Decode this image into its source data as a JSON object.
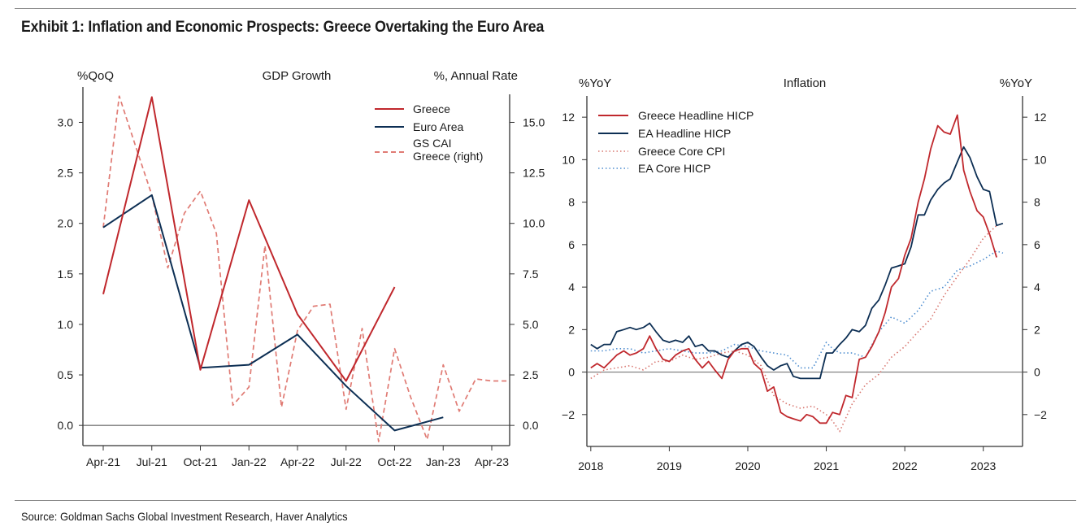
{
  "title": "Exhibit 1: Inflation and Economic Prospects: Greece Overtaking the Euro Area",
  "source": "Source: Goldman Sachs Global Investment Research, Haver Analytics",
  "colors": {
    "greece": "#c0282d",
    "euro": "#0d2f54",
    "greece_core": "#d8766f",
    "ea_core": "#4f8ed0",
    "gs_cai": "#e07b74",
    "axis": "#333333"
  },
  "chart_data": [
    {
      "type": "line",
      "title": "GDP Growth",
      "ylabel_left": "%QoQ",
      "ylabel_right": "%, Annual Rate",
      "categories": [
        "Apr-21",
        "Jul-21",
        "Oct-21",
        "Jan-22",
        "Apr-22",
        "Jul-22",
        "Oct-22",
        "Jan-23",
        "Apr-23"
      ],
      "ylim_left": [
        -0.2,
        3.35
      ],
      "ylim_right": [
        -1.0,
        16.75
      ],
      "yticks_left": [
        "0.0",
        "0.5",
        "1.0",
        "1.5",
        "2.0",
        "2.5",
        "3.0"
      ],
      "yticks_right": [
        "0.0",
        "2.5",
        "5.0",
        "7.5",
        "10.0",
        "12.5",
        "15.0"
      ],
      "legend": [
        "Greece",
        "Euro Area",
        "GS CAI Greece (right)"
      ],
      "series": [
        {
          "name": "Greece",
          "axis": "left",
          "style": "solid",
          "color": "#c0282d",
          "x": [
            0,
            1,
            2,
            3,
            4,
            5,
            6
          ],
          "values": [
            1.3,
            3.25,
            0.55,
            2.23,
            1.1,
            0.44,
            1.37
          ]
        },
        {
          "name": "Euro Area",
          "axis": "left",
          "style": "solid",
          "color": "#0d2f54",
          "x": [
            0,
            1,
            2,
            3,
            4,
            5,
            6,
            7
          ],
          "values": [
            1.96,
            2.28,
            0.57,
            0.6,
            0.9,
            0.39,
            -0.05,
            0.08
          ]
        },
        {
          "name": "GS CAI Greece (right)",
          "axis": "right",
          "style": "dashed",
          "color": "#e07b74",
          "x": [
            0,
            0.33,
            0.67,
            1,
            1.33,
            1.67,
            2,
            2.33,
            2.67,
            3,
            3.33,
            3.67,
            4,
            4.33,
            4.67,
            5,
            5.33,
            5.67,
            6,
            6.33,
            6.67,
            7,
            7.33,
            7.67,
            8,
            8.33
          ],
          "values": [
            9.8,
            16.3,
            13.8,
            11.4,
            7.8,
            10.5,
            11.6,
            9.5,
            1.0,
            1.9,
            8.9,
            0.9,
            4.7,
            5.9,
            6.0,
            0.8,
            4.8,
            -0.8,
            3.8,
            1.4,
            -0.7,
            3.0,
            0.7,
            2.3,
            2.2,
            2.2
          ]
        }
      ]
    },
    {
      "type": "line",
      "title": "Inflation",
      "ylabel_left": "%YoY",
      "ylabel_right": "%YoY",
      "xticks": [
        "2018",
        "2019",
        "2020",
        "2021",
        "2022",
        "2023"
      ],
      "xlim": [
        2017.95,
        2023.5
      ],
      "ylim": [
        -3.5,
        13.0
      ],
      "yticks_left": [
        "-2",
        "0",
        "2",
        "4",
        "6",
        "8",
        "10",
        "12"
      ],
      "yticks_right": [
        "-2",
        "0",
        "2",
        "4",
        "6",
        "8",
        "10",
        "12"
      ],
      "legend": [
        "Greece Headline HICP",
        "EA Headline HICP",
        "Greece Core CPI",
        "EA Core HICP"
      ],
      "series": [
        {
          "name": "Greece Headline HICP",
          "style": "solid",
          "color": "#c0282d",
          "x": [
            2018.0,
            2018.08,
            2018.17,
            2018.25,
            2018.33,
            2018.42,
            2018.5,
            2018.58,
            2018.67,
            2018.75,
            2018.83,
            2018.92,
            2019.0,
            2019.08,
            2019.17,
            2019.25,
            2019.33,
            2019.42,
            2019.5,
            2019.58,
            2019.67,
            2019.75,
            2019.83,
            2019.92,
            2020.0,
            2020.08,
            2020.17,
            2020.25,
            2020.33,
            2020.42,
            2020.5,
            2020.58,
            2020.67,
            2020.75,
            2020.83,
            2020.92,
            2021.0,
            2021.08,
            2021.17,
            2021.25,
            2021.33,
            2021.42,
            2021.5,
            2021.58,
            2021.67,
            2021.75,
            2021.83,
            2021.92,
            2022.0,
            2022.08,
            2022.17,
            2022.25,
            2022.33,
            2022.42,
            2022.5,
            2022.58,
            2022.67,
            2022.75,
            2022.83,
            2022.92,
            2023.0,
            2023.08,
            2023.17
          ],
          "values": [
            0.2,
            0.4,
            0.2,
            0.5,
            0.8,
            1.0,
            0.8,
            0.9,
            1.1,
            1.7,
            1.1,
            0.6,
            0.5,
            0.8,
            1.0,
            1.1,
            0.6,
            0.2,
            0.5,
            0.1,
            -0.3,
            0.6,
            1.0,
            1.1,
            1.1,
            0.4,
            0.1,
            -0.9,
            -0.7,
            -1.9,
            -2.1,
            -2.2,
            -2.3,
            -2.0,
            -2.1,
            -2.4,
            -2.4,
            -1.9,
            -2.0,
            -1.1,
            -1.2,
            0.6,
            0.7,
            1.2,
            1.9,
            2.8,
            4.0,
            4.4,
            5.5,
            6.3,
            8.0,
            9.1,
            10.5,
            11.6,
            11.3,
            11.2,
            12.1,
            9.5,
            8.5,
            7.6,
            7.3,
            6.5,
            5.4
          ]
        },
        {
          "name": "EA Headline HICP",
          "style": "solid",
          "color": "#0d2f54",
          "x": [
            2018.0,
            2018.08,
            2018.17,
            2018.25,
            2018.33,
            2018.42,
            2018.5,
            2018.58,
            2018.67,
            2018.75,
            2018.83,
            2018.92,
            2019.0,
            2019.08,
            2019.17,
            2019.25,
            2019.33,
            2019.42,
            2019.5,
            2019.58,
            2019.67,
            2019.75,
            2019.83,
            2019.92,
            2020.0,
            2020.08,
            2020.17,
            2020.25,
            2020.33,
            2020.42,
            2020.5,
            2020.58,
            2020.67,
            2020.75,
            2020.83,
            2020.92,
            2021.0,
            2021.08,
            2021.17,
            2021.25,
            2021.33,
            2021.42,
            2021.5,
            2021.58,
            2021.67,
            2021.75,
            2021.83,
            2021.92,
            2022.0,
            2022.08,
            2022.17,
            2022.25,
            2022.33,
            2022.42,
            2022.5,
            2022.58,
            2022.67,
            2022.75,
            2022.83,
            2022.92,
            2023.0,
            2023.08,
            2023.17,
            2023.25
          ],
          "values": [
            1.3,
            1.1,
            1.3,
            1.3,
            1.9,
            2.0,
            2.1,
            2.0,
            2.1,
            2.3,
            1.9,
            1.5,
            1.4,
            1.5,
            1.4,
            1.7,
            1.2,
            1.3,
            1.0,
            1.0,
            0.8,
            0.7,
            1.0,
            1.3,
            1.4,
            1.2,
            0.7,
            0.3,
            0.1,
            0.3,
            0.4,
            -0.2,
            -0.3,
            -0.3,
            -0.3,
            -0.3,
            0.9,
            0.9,
            1.3,
            1.6,
            2.0,
            1.9,
            2.2,
            3.0,
            3.4,
            4.1,
            4.9,
            5.0,
            5.1,
            5.9,
            7.4,
            7.4,
            8.1,
            8.6,
            8.9,
            9.1,
            9.9,
            10.6,
            10.1,
            9.2,
            8.6,
            8.5,
            6.9,
            7.0
          ]
        },
        {
          "name": "Greece Core CPI",
          "style": "dotted",
          "color": "#d8766f",
          "x": [
            2018.0,
            2018.17,
            2018.33,
            2018.5,
            2018.67,
            2018.83,
            2019.0,
            2019.17,
            2019.33,
            2019.5,
            2019.67,
            2019.83,
            2020.0,
            2020.17,
            2020.33,
            2020.5,
            2020.67,
            2020.83,
            2021.0,
            2021.08,
            2021.17,
            2021.33,
            2021.5,
            2021.67,
            2021.83,
            2022.0,
            2022.17,
            2022.33,
            2022.5,
            2022.67,
            2022.83,
            2023.0,
            2023.17
          ],
          "values": [
            -0.3,
            0.1,
            0.2,
            0.3,
            0.1,
            0.5,
            0.5,
            0.8,
            0.6,
            0.7,
            0.9,
            1.0,
            0.8,
            0.3,
            -1.1,
            -1.5,
            -1.7,
            -1.6,
            -2.0,
            -2.3,
            -2.8,
            -1.5,
            -0.6,
            -0.1,
            0.7,
            1.2,
            1.9,
            2.5,
            3.6,
            4.5,
            5.3,
            6.3,
            6.9
          ]
        },
        {
          "name": "EA Core HICP",
          "style": "dotted",
          "color": "#4f8ed0",
          "x": [
            2018.0,
            2018.17,
            2018.33,
            2018.5,
            2018.67,
            2018.83,
            2019.0,
            2019.17,
            2019.33,
            2019.5,
            2019.67,
            2019.83,
            2020.0,
            2020.17,
            2020.33,
            2020.5,
            2020.67,
            2020.83,
            2021.0,
            2021.08,
            2021.17,
            2021.33,
            2021.5,
            2021.67,
            2021.83,
            2022.0,
            2022.17,
            2022.33,
            2022.5,
            2022.67,
            2022.83,
            2023.0,
            2023.17,
            2023.25
          ],
          "values": [
            1.0,
            1.0,
            1.1,
            1.1,
            0.9,
            1.0,
            1.1,
            1.0,
            0.9,
            0.9,
            1.0,
            1.3,
            1.2,
            1.0,
            0.9,
            0.8,
            0.2,
            0.2,
            1.4,
            1.1,
            0.9,
            0.9,
            0.7,
            1.9,
            2.6,
            2.3,
            2.9,
            3.8,
            4.0,
            4.8,
            5.0,
            5.3,
            5.7,
            5.6
          ]
        }
      ]
    }
  ]
}
